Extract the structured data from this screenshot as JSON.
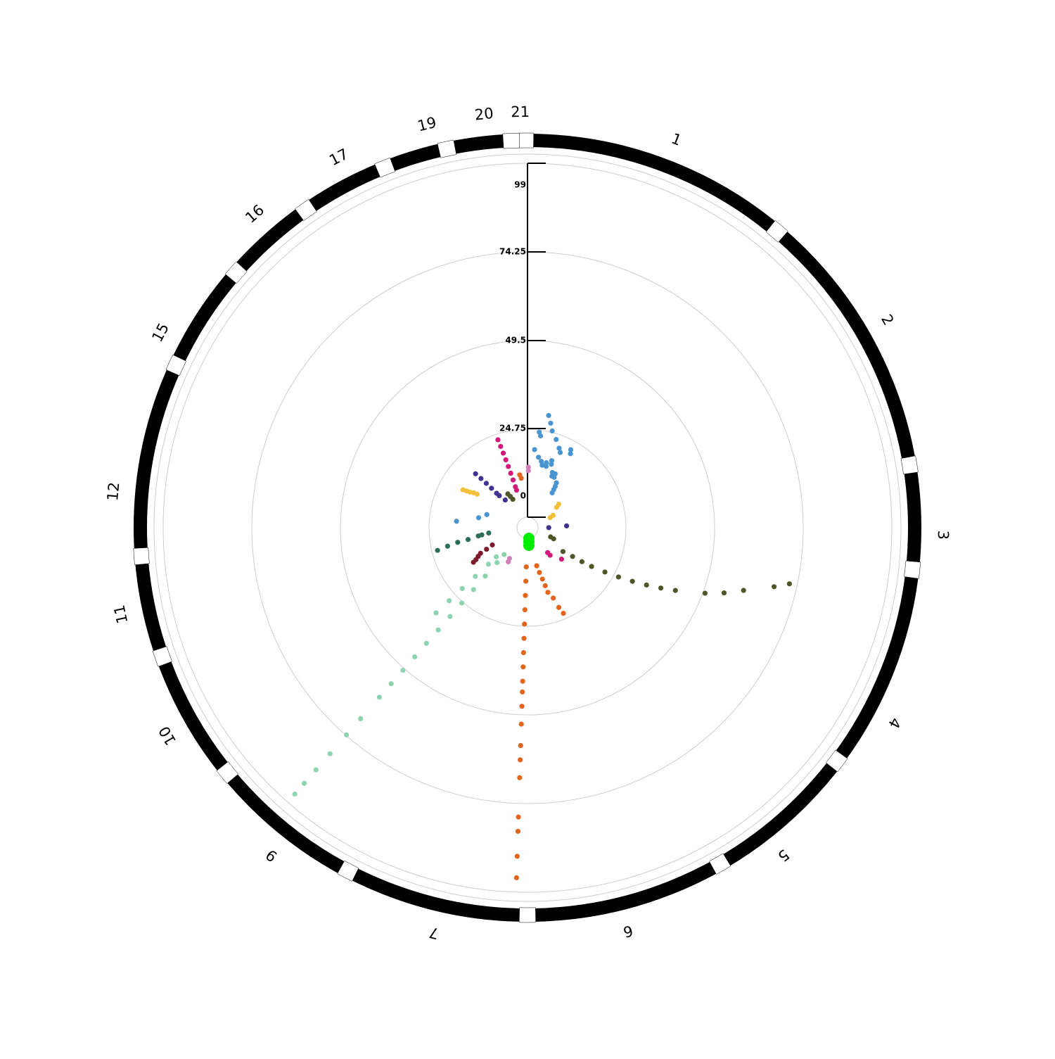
{
  "chart_data": {
    "type": "circular-manhattan",
    "title": "",
    "radial_axis": {
      "ticks": [
        "0",
        "24.75",
        "49.5",
        "74.25",
        "99"
      ],
      "tick_values": [
        0,
        24.75,
        49.5,
        74.25,
        99
      ],
      "max": 103.5
    },
    "grid": true,
    "chromosomes": [
      "1",
      "2",
      "3",
      "4",
      "5",
      "6",
      "7",
      "9",
      "10",
      "11",
      "12",
      "15",
      "16",
      "17",
      "19",
      "20",
      "21"
    ],
    "series": [
      {
        "chromosome": "1",
        "color": "#4a94d0",
        "points": [
          {
            "pos": 0.25,
            "y": 29
          },
          {
            "pos": 0.3,
            "y": 27
          },
          {
            "pos": 0.35,
            "y": 25
          },
          {
            "pos": 0.45,
            "y": 23
          },
          {
            "pos": 0.55,
            "y": 21
          },
          {
            "pos": 0.6,
            "y": 20
          },
          {
            "pos": 0.75,
            "y": 22
          },
          {
            "pos": 0.78,
            "y": 21
          },
          {
            "pos": 0.15,
            "y": 24
          },
          {
            "pos": 0.18,
            "y": 23
          },
          {
            "pos": 0.1,
            "y": 19
          },
          {
            "pos": 0.2,
            "y": 17
          },
          {
            "pos": 0.28,
            "y": 16
          },
          {
            "pos": 0.32,
            "y": 15
          },
          {
            "pos": 0.4,
            "y": 16
          },
          {
            "pos": 0.42,
            "y": 15
          },
          {
            "pos": 0.5,
            "y": 17
          },
          {
            "pos": 0.52,
            "y": 16
          },
          {
            "pos": 0.62,
            "y": 14
          },
          {
            "pos": 0.65,
            "y": 13
          },
          {
            "pos": 0.7,
            "y": 14
          },
          {
            "pos": 0.72,
            "y": 13
          },
          {
            "pos": 0.85,
            "y": 12
          },
          {
            "pos": 0.88,
            "y": 11
          },
          {
            "pos": 0.9,
            "y": 10
          },
          {
            "pos": 0.92,
            "y": 9
          }
        ]
      },
      {
        "chromosome": "2",
        "color": "#f0c03a",
        "points": [
          {
            "pos": 0.3,
            "y": 8
          },
          {
            "pos": 0.35,
            "y": 7
          },
          {
            "pos": 0.6,
            "y": 5
          },
          {
            "pos": 0.65,
            "y": 4
          }
        ]
      },
      {
        "chromosome": "3",
        "color": "#3f3290",
        "points": [
          {
            "pos": 0.4,
            "y": 8
          },
          {
            "pos": 0.6,
            "y": 3
          }
        ]
      },
      {
        "chromosome": "4",
        "color": "#4d5529",
        "points": [
          {
            "pos": 0.15,
            "y": 72
          },
          {
            "pos": 0.2,
            "y": 68
          },
          {
            "pos": 0.3,
            "y": 60
          },
          {
            "pos": 0.38,
            "y": 55
          },
          {
            "pos": 0.45,
            "y": 50
          },
          {
            "pos": 0.55,
            "y": 42
          },
          {
            "pos": 0.6,
            "y": 38
          },
          {
            "pos": 0.65,
            "y": 34
          },
          {
            "pos": 0.7,
            "y": 30
          },
          {
            "pos": 0.75,
            "y": 26
          },
          {
            "pos": 0.8,
            "y": 22
          },
          {
            "pos": 0.85,
            "y": 18
          },
          {
            "pos": 0.88,
            "y": 15
          },
          {
            "pos": 0.9,
            "y": 12
          },
          {
            "pos": 0.95,
            "y": 9
          },
          {
            "pos": 0.5,
            "y": 4
          },
          {
            "pos": 0.55,
            "y": 5
          }
        ]
      },
      {
        "chromosome": "5",
        "color": "#d0197b",
        "points": [
          {
            "pos": 0.2,
            "y": 10
          },
          {
            "pos": 0.6,
            "y": 7
          },
          {
            "pos": 0.62,
            "y": 6
          }
        ]
      },
      {
        "chromosome": "6",
        "color": "#e0661e",
        "points": [
          {
            "pos": 0.2,
            "y": 23
          },
          {
            "pos": 0.25,
            "y": 21
          },
          {
            "pos": 0.3,
            "y": 18
          },
          {
            "pos": 0.4,
            "y": 16
          },
          {
            "pos": 0.42,
            "y": 14
          },
          {
            "pos": 0.45,
            "y": 12
          },
          {
            "pos": 0.5,
            "y": 10
          },
          {
            "pos": 0.55,
            "y": 8
          }
        ]
      },
      {
        "chromosome": "7",
        "color": "#e0661e",
        "points": [
          {
            "pos": 0.0,
            "y": 95
          },
          {
            "pos": 0.0,
            "y": 89
          },
          {
            "pos": 0.0,
            "y": 82
          },
          {
            "pos": 0.0,
            "y": 78
          },
          {
            "pos": 0.0,
            "y": 67
          },
          {
            "pos": 0.0,
            "y": 62
          },
          {
            "pos": 0.0,
            "y": 58
          },
          {
            "pos": 0.0,
            "y": 52
          },
          {
            "pos": 0.0,
            "y": 47
          },
          {
            "pos": 0.0,
            "y": 43
          },
          {
            "pos": 0.0,
            "y": 40
          },
          {
            "pos": 0.0,
            "y": 36
          },
          {
            "pos": 0.0,
            "y": 32
          },
          {
            "pos": 0.0,
            "y": 28
          },
          {
            "pos": 0.0,
            "y": 24
          },
          {
            "pos": 0.0,
            "y": 20
          },
          {
            "pos": 0.0,
            "y": 16
          },
          {
            "pos": 0.0,
            "y": 12
          },
          {
            "pos": 0.0,
            "y": 8
          }
        ]
      },
      {
        "chromosome": "9",
        "color": "#d080b8",
        "points": [
          {
            "pos": 0.0,
            "y": 8
          },
          {
            "pos": 0.05,
            "y": 7
          }
        ]
      },
      {
        "chromosome": "9",
        "color": "#8ed3b0",
        "points": [
          {
            "pos": 0.6,
            "y": 96
          },
          {
            "pos": 0.6,
            "y": 92
          },
          {
            "pos": 0.6,
            "y": 87
          },
          {
            "pos": 0.6,
            "y": 81
          },
          {
            "pos": 0.6,
            "y": 74
          },
          {
            "pos": 0.6,
            "y": 68
          },
          {
            "pos": 0.6,
            "y": 60
          },
          {
            "pos": 0.6,
            "y": 55
          },
          {
            "pos": 0.6,
            "y": 50
          },
          {
            "pos": 0.6,
            "y": 45
          },
          {
            "pos": 0.6,
            "y": 40
          },
          {
            "pos": 0.6,
            "y": 35
          },
          {
            "pos": 0.6,
            "y": 30
          },
          {
            "pos": 0.6,
            "y": 25
          },
          {
            "pos": 0.6,
            "y": 20
          },
          {
            "pos": 0.6,
            "y": 15
          },
          {
            "pos": 0.6,
            "y": 10
          },
          {
            "pos": 0.6,
            "y": 7
          },
          {
            "pos": 0.9,
            "y": 32
          },
          {
            "pos": 0.9,
            "y": 27
          },
          {
            "pos": 0.9,
            "y": 22
          },
          {
            "pos": 0.9,
            "y": 17
          },
          {
            "pos": 0.9,
            "y": 12
          },
          {
            "pos": 0.9,
            "y": 9
          }
        ]
      },
      {
        "chromosome": "10",
        "color": "#7c1b2b",
        "points": [
          {
            "pos": 0.3,
            "y": 15
          },
          {
            "pos": 0.35,
            "y": 14
          },
          {
            "pos": 0.45,
            "y": 13
          },
          {
            "pos": 0.55,
            "y": 12
          },
          {
            "pos": 0.6,
            "y": 10
          },
          {
            "pos": 0.7,
            "y": 8
          }
        ]
      },
      {
        "chromosome": "11",
        "color": "#2b6e57",
        "points": [
          {
            "pos": 0.3,
            "y": 23
          },
          {
            "pos": 0.4,
            "y": 20
          },
          {
            "pos": 0.5,
            "y": 17
          },
          {
            "pos": 0.55,
            "y": 14
          },
          {
            "pos": 0.7,
            "y": 11
          },
          {
            "pos": 0.75,
            "y": 10
          },
          {
            "pos": 0.85,
            "y": 8
          }
        ]
      },
      {
        "chromosome": "12",
        "color": "#4a94d0",
        "points": [
          {
            "pos": 0.3,
            "y": 17
          },
          {
            "pos": 0.55,
            "y": 11
          },
          {
            "pos": 0.8,
            "y": 9
          }
        ]
      },
      {
        "chromosome": "15",
        "color": "#f0c03a",
        "points": [
          {
            "pos": 0.3,
            "y": 18
          },
          {
            "pos": 0.35,
            "y": 17
          },
          {
            "pos": 0.4,
            "y": 16
          },
          {
            "pos": 0.5,
            "y": 15
          },
          {
            "pos": 0.55,
            "y": 14
          }
        ]
      },
      {
        "chromosome": "16",
        "color": "#3f3290",
        "points": [
          {
            "pos": 0.3,
            "y": 18
          },
          {
            "pos": 0.35,
            "y": 16
          },
          {
            "pos": 0.4,
            "y": 14
          },
          {
            "pos": 0.45,
            "y": 12
          },
          {
            "pos": 0.5,
            "y": 10
          },
          {
            "pos": 0.55,
            "y": 9
          },
          {
            "pos": 0.8,
            "y": 7
          }
        ]
      },
      {
        "chromosome": "17",
        "color": "#4d5529",
        "points": [
          {
            "pos": 0.3,
            "y": 8
          },
          {
            "pos": 0.45,
            "y": 7
          },
          {
            "pos": 0.6,
            "y": 6
          }
        ]
      },
      {
        "chromosome": "19",
        "color": "#d0197b",
        "points": [
          {
            "pos": 0.2,
            "y": 23
          },
          {
            "pos": 0.25,
            "y": 21
          },
          {
            "pos": 0.3,
            "y": 19
          },
          {
            "pos": 0.35,
            "y": 17
          },
          {
            "pos": 0.4,
            "y": 15
          },
          {
            "pos": 0.45,
            "y": 13
          },
          {
            "pos": 0.5,
            "y": 11
          },
          {
            "pos": 0.55,
            "y": 9
          },
          {
            "pos": 0.6,
            "y": 8
          }
        ]
      },
      {
        "chromosome": "20",
        "color": "#e0661e",
        "points": [
          {
            "pos": 0.3,
            "y": 12
          },
          {
            "pos": 0.5,
            "y": 11
          }
        ]
      },
      {
        "chromosome": "21",
        "color": "#d080b8",
        "points": [
          {
            "pos": 0.7,
            "y": 14
          },
          {
            "pos": 0.75,
            "y": 13
          }
        ]
      },
      {
        "chromosome": "center",
        "color": "#00ee00",
        "points": [
          {
            "pos": 0.0,
            "y": 0
          },
          {
            "pos": 0.5,
            "y": 0
          },
          {
            "pos": 1.0,
            "y": 0
          }
        ]
      }
    ]
  }
}
